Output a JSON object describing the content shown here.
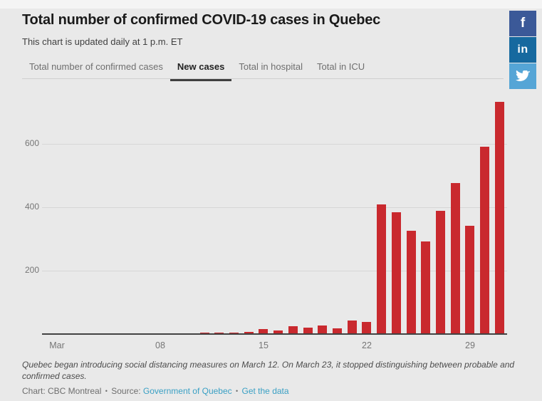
{
  "header": {
    "title": "Total number of confirmed COVID-19 cases in Quebec",
    "subtitle": "This chart is updated daily at 1 p.m. ET"
  },
  "tabs": [
    {
      "label": "Total number of confirmed cases",
      "active": false
    },
    {
      "label": "New cases",
      "active": true
    },
    {
      "label": "Total in hospital",
      "active": false
    },
    {
      "label": "Total in ICU",
      "active": false
    }
  ],
  "social": [
    {
      "name": "facebook",
      "glyph": "f",
      "color": "#3b5998"
    },
    {
      "name": "linkedin",
      "glyph": "in",
      "color": "#16699f"
    },
    {
      "name": "twitter",
      "glyph": "bird",
      "color": "#55a5d6"
    }
  ],
  "chart_data": {
    "type": "bar",
    "title": "New confirmed COVID-19 cases per day in Quebec, March 2020",
    "xlabel": "",
    "ylabel": "",
    "bar_color": "#c9292e",
    "grid": true,
    "ylim": [
      0,
      770
    ],
    "yticks": [
      200,
      400,
      600
    ],
    "xticks": [
      {
        "label": "Mar",
        "day": 1
      },
      {
        "label": "08",
        "day": 8
      },
      {
        "label": "15",
        "day": 15
      },
      {
        "label": "22",
        "day": 22
      },
      {
        "label": "29",
        "day": 29
      }
    ],
    "categories": [
      "Mar 1",
      "Mar 2",
      "Mar 3",
      "Mar 4",
      "Mar 5",
      "Mar 6",
      "Mar 7",
      "Mar 8",
      "Mar 9",
      "Mar 10",
      "Mar 11",
      "Mar 12",
      "Mar 13",
      "Mar 14",
      "Mar 15",
      "Mar 16",
      "Mar 17",
      "Mar 18",
      "Mar 19",
      "Mar 20",
      "Mar 21",
      "Mar 22",
      "Mar 23",
      "Mar 24",
      "Mar 25",
      "Mar 26",
      "Mar 27",
      "Mar 28",
      "Mar 29",
      "Mar 30",
      "Mar 31"
    ],
    "values": [
      0,
      0,
      0,
      0,
      0,
      0,
      0,
      0,
      0,
      0,
      5,
      4,
      5,
      7,
      16,
      11,
      24,
      20,
      28,
      18,
      42,
      38,
      409,
      385,
      326,
      293,
      389,
      477,
      342,
      590,
      732
    ]
  },
  "footer": {
    "note": "Quebec began introducing social distancing measures on March 12. On March 23, it stopped distinguishing between probable and confirmed cases.",
    "credit_prefix": "Chart: CBC Montreal",
    "source_label": "Source:",
    "separator": "•",
    "links": [
      {
        "label": "Government of Quebec"
      },
      {
        "label": "Get the data"
      }
    ],
    "link_color": "#3aa0c4",
    "credit_color": "#6e6e6e"
  }
}
